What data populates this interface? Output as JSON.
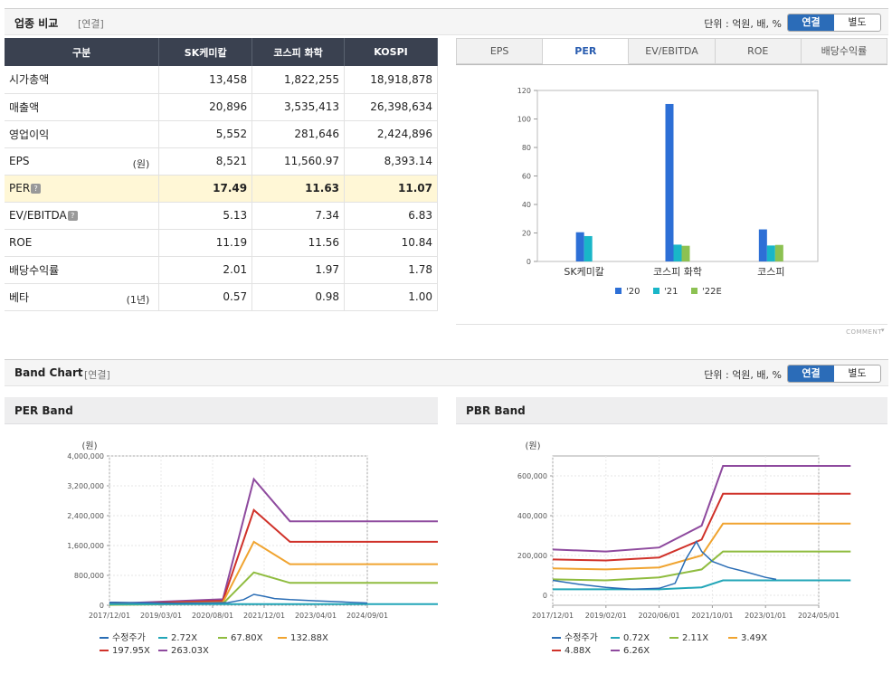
{
  "comparison": {
    "title": "업종 비교",
    "sub": "[연결]",
    "unit_text": "단위 : 억원, 배, %",
    "toggle_on": "연결",
    "toggle_off": "별도",
    "headers": [
      "구분",
      "SK케미칼",
      "코스피 화학",
      "KOSPI"
    ],
    "rows": [
      {
        "label": "시가총액",
        "unit": "",
        "help": false,
        "highlight": false,
        "values": [
          "13,458",
          "1,822,255",
          "18,918,878"
        ]
      },
      {
        "label": "매출액",
        "unit": "",
        "help": false,
        "highlight": false,
        "values": [
          "20,896",
          "3,535,413",
          "26,398,634"
        ]
      },
      {
        "label": "영업이익",
        "unit": "",
        "help": false,
        "highlight": false,
        "values": [
          "5,552",
          "281,646",
          "2,424,896"
        ]
      },
      {
        "label": "EPS",
        "unit": "(원)",
        "help": false,
        "highlight": false,
        "values": [
          "8,521",
          "11,560.97",
          "8,393.14"
        ]
      },
      {
        "label": "PER",
        "unit": "",
        "help": true,
        "highlight": true,
        "values": [
          "17.49",
          "11.63",
          "11.07"
        ]
      },
      {
        "label": "EV/EBITDA",
        "unit": "",
        "help": true,
        "highlight": false,
        "values": [
          "5.13",
          "7.34",
          "6.83"
        ]
      },
      {
        "label": "ROE",
        "unit": "",
        "help": false,
        "highlight": false,
        "values": [
          "11.19",
          "11.56",
          "10.84"
        ]
      },
      {
        "label": "배당수익률",
        "unit": "",
        "help": false,
        "highlight": false,
        "values": [
          "2.01",
          "1.97",
          "1.78"
        ]
      },
      {
        "label": "베타",
        "unit": "(1년)",
        "help": false,
        "highlight": false,
        "values": [
          "0.57",
          "0.98",
          "1.00"
        ]
      }
    ],
    "tabs": [
      "EPS",
      "PER",
      "EV/EBITDA",
      "ROE",
      "배당수익률"
    ],
    "active_tab": "PER",
    "comment_label": "COMMENT",
    "help_glyph": "?"
  },
  "band": {
    "title": "Band Chart",
    "sub": "[연결]",
    "unit_text": "단위 : 억원, 배, %",
    "toggle_on": "연결",
    "toggle_off": "별도",
    "per_panel_title": "PER Band",
    "pbr_panel_title": "PBR Band"
  },
  "colors": {
    "header_bg": "#3a4150",
    "highlight_row": "#fff7d6",
    "toggle_active": "#2b6cb8",
    "c20": "#2d6fd6",
    "c21": "#19b6c8",
    "c22": "#8cc152",
    "price": "#2a6db5",
    "b1": "#23a6b8",
    "b2": "#8fbc3f",
    "b3": "#f0a430",
    "b4": "#d0322a",
    "b5": "#8e4a9e"
  },
  "chart_data": [
    {
      "id": "per-compare",
      "type": "bar",
      "categories": [
        "SK케미칼",
        "코스피 화학",
        "코스피"
      ],
      "series": [
        {
          "name": "'20",
          "values": [
            20.5,
            110.5,
            22.5
          ]
        },
        {
          "name": "'21",
          "values": [
            17.8,
            11.8,
            11.2
          ]
        },
        {
          "name": "'22E",
          "values": [
            null,
            11.0,
            11.6
          ]
        }
      ],
      "ylim": [
        0,
        120
      ],
      "yticks": [
        0,
        20,
        40,
        60,
        80,
        100,
        120
      ],
      "legend": "bottom",
      "grid": false
    },
    {
      "id": "per-band",
      "type": "line",
      "ylabel": "(원)",
      "xticks": [
        "2017/12/01",
        "2019/03/01",
        "2020/08/01",
        "2021/12/01",
        "2023/04/01",
        "2024/09/01"
      ],
      "yticks": [
        "0",
        "800,000",
        "1,600,000",
        "2,400,000",
        "3,200,000",
        "4,000,000"
      ],
      "ylim": [
        0,
        4000000
      ],
      "legend": "bottom",
      "series": [
        {
          "name": "수정주가",
          "points": [
            [
              0,
              80000
            ],
            [
              0.5,
              70000
            ],
            [
              1.0,
              60000
            ],
            [
              1.3,
              55000
            ],
            [
              1.8,
              60000
            ],
            [
              2.3,
              70000
            ],
            [
              2.6,
              150000
            ],
            [
              2.8,
              290000
            ],
            [
              3.0,
              240000
            ],
            [
              3.2,
              180000
            ],
            [
              3.5,
              150000
            ],
            [
              4.0,
              120000
            ],
            [
              4.5,
              90000
            ],
            [
              5.0,
              60000
            ]
          ]
        },
        {
          "name": "2.72X",
          "points": [
            [
              0,
              30000
            ],
            [
              2.2,
              30000
            ],
            [
              2.8,
              30000
            ],
            [
              3.5,
              30000
            ],
            [
              6.6,
              30000
            ]
          ]
        },
        {
          "name": "67.80X",
          "points": [
            [
              0,
              10000
            ],
            [
              2.2,
              40000
            ],
            [
              2.8,
              880000
            ],
            [
              3.5,
              600000
            ],
            [
              6.6,
              600000
            ]
          ]
        },
        {
          "name": "132.88X",
          "points": [
            [
              0,
              20000
            ],
            [
              2.2,
              80000
            ],
            [
              2.8,
              1700000
            ],
            [
              3.5,
              1100000
            ],
            [
              6.6,
              1100000
            ]
          ]
        },
        {
          "name": "197.95X",
          "points": [
            [
              0,
              30000
            ],
            [
              2.2,
              120000
            ],
            [
              2.8,
              2550000
            ],
            [
              3.5,
              1700000
            ],
            [
              6.6,
              1700000
            ]
          ]
        },
        {
          "name": "263.03X",
          "points": [
            [
              0,
              40000
            ],
            [
              2.2,
              160000
            ],
            [
              2.8,
              3380000
            ],
            [
              3.5,
              2250000
            ],
            [
              6.6,
              2250000
            ]
          ]
        }
      ]
    },
    {
      "id": "pbr-band",
      "type": "line",
      "ylabel": "(원)",
      "xticks": [
        "2017/12/01",
        "2019/02/01",
        "2020/06/01",
        "2021/10/01",
        "2023/01/01",
        "2024/05/01"
      ],
      "yticks": [
        "0",
        "200,000",
        "400,000",
        "600,000"
      ],
      "ylim": [
        -50000,
        700000
      ],
      "legend": "bottom",
      "series": [
        {
          "name": "수정주가",
          "points": [
            [
              0,
              75000
            ],
            [
              0.5,
              55000
            ],
            [
              1.0,
              40000
            ],
            [
              1.5,
              30000
            ],
            [
              2.0,
              35000
            ],
            [
              2.3,
              60000
            ],
            [
              2.5,
              180000
            ],
            [
              2.7,
              270000
            ],
            [
              2.8,
              220000
            ],
            [
              3.0,
              170000
            ],
            [
              3.3,
              140000
            ],
            [
              3.6,
              120000
            ],
            [
              4.0,
              90000
            ],
            [
              4.2,
              80000
            ]
          ]
        },
        {
          "name": "0.72X",
          "points": [
            [
              0,
              30000
            ],
            [
              2.0,
              30000
            ],
            [
              2.8,
              40000
            ],
            [
              3.2,
              75000
            ],
            [
              5.6,
              75000
            ]
          ]
        },
        {
          "name": "2.11X",
          "points": [
            [
              0,
              80000
            ],
            [
              1.0,
              75000
            ],
            [
              2.0,
              90000
            ],
            [
              2.8,
              130000
            ],
            [
              3.2,
              220000
            ],
            [
              5.6,
              220000
            ]
          ]
        },
        {
          "name": "3.49X",
          "points": [
            [
              0,
              135000
            ],
            [
              1.0,
              130000
            ],
            [
              2.0,
              140000
            ],
            [
              2.8,
              200000
            ],
            [
              3.2,
              360000
            ],
            [
              5.6,
              360000
            ]
          ]
        },
        {
          "name": "4.88X",
          "points": [
            [
              0,
              180000
            ],
            [
              1.0,
              175000
            ],
            [
              2.0,
              190000
            ],
            [
              2.8,
              280000
            ],
            [
              3.2,
              510000
            ],
            [
              5.6,
              510000
            ]
          ]
        },
        {
          "name": "6.26X",
          "points": [
            [
              0,
              230000
            ],
            [
              1.0,
              220000
            ],
            [
              2.0,
              240000
            ],
            [
              2.8,
              350000
            ],
            [
              3.2,
              650000
            ],
            [
              5.6,
              650000
            ]
          ]
        }
      ]
    }
  ]
}
